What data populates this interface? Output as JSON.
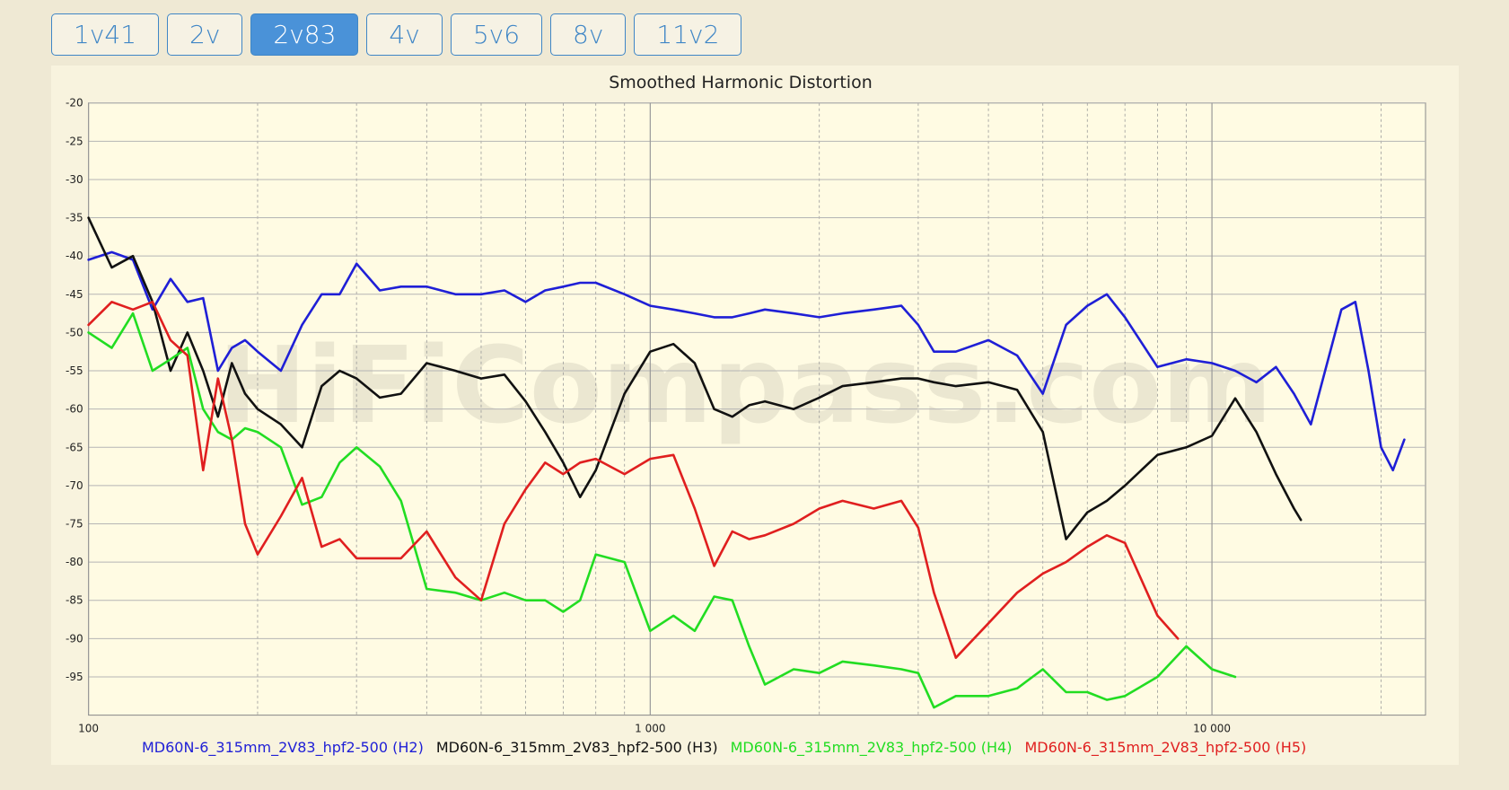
{
  "tabs": [
    {
      "label": "1v41",
      "active": false
    },
    {
      "label": "2v",
      "active": false
    },
    {
      "label": "2v83",
      "active": true
    },
    {
      "label": "4v",
      "active": false
    },
    {
      "label": "5v6",
      "active": false
    },
    {
      "label": "8v",
      "active": false
    },
    {
      "label": "11v2",
      "active": false
    }
  ],
  "chart_data": {
    "type": "line",
    "title": "Smoothed Harmonic Distortion",
    "watermark": "HiFiCompass.com",
    "xscale": "log",
    "grid": true,
    "minor_grid": true,
    "xlim": [
      100,
      24000
    ],
    "xticks": [
      100,
      {
        "value": 1000,
        "label": "1 000"
      },
      {
        "value": 10000,
        "label": "10 000"
      }
    ],
    "ylim": [
      -100,
      -20
    ],
    "yticks": [
      -20,
      -25,
      -30,
      -35,
      -40,
      -45,
      -50,
      -55,
      -60,
      -65,
      -70,
      -75,
      -80,
      -85,
      -90,
      -95
    ],
    "series": [
      {
        "name": "MD60N-6_315mm_2V83_hpf2-500 (H2)",
        "color": "#1f1fd6",
        "x": [
          100,
          110,
          120,
          130,
          140,
          150,
          160,
          170,
          180,
          190,
          200,
          220,
          240,
          260,
          280,
          300,
          330,
          360,
          400,
          450,
          500,
          550,
          600,
          650,
          700,
          750,
          800,
          900,
          1000,
          1100,
          1200,
          1300,
          1400,
          1500,
          1600,
          1800,
          2000,
          2200,
          2500,
          2800,
          3000,
          3200,
          3500,
          4000,
          4500,
          5000,
          5500,
          6000,
          6500,
          7000,
          8000,
          9000,
          10000,
          11000,
          12000,
          13000,
          14000,
          15000,
          17000,
          18000,
          19000,
          20000,
          21000,
          22000
        ],
        "values": [
          -40.5,
          -39.5,
          -40.5,
          -47,
          -43,
          -46,
          -45.5,
          -55,
          -52,
          -51,
          -52.5,
          -55,
          -49,
          -45,
          -45,
          -41,
          -44.5,
          -44,
          -44,
          -45,
          -45,
          -44.5,
          -46,
          -44.5,
          -44,
          -43.5,
          -43.5,
          -45,
          -46.5,
          -47,
          -47.5,
          -48,
          -48,
          -47.5,
          -47,
          -47.5,
          -48,
          -47.5,
          -47,
          -46.5,
          -49,
          -52.5,
          -52.5,
          -51,
          -53,
          -58,
          -49,
          -46.5,
          -45,
          -48,
          -54.5,
          -53.5,
          -54,
          -55,
          -56.5,
          -54.5,
          -58,
          -62,
          -47,
          -46,
          -55,
          -65,
          -68,
          -64
        ]
      },
      {
        "name": "MD60N-6_315mm_2V83_hpf2-500 (H3)",
        "color": "#111111",
        "x": [
          100,
          110,
          120,
          130,
          140,
          150,
          160,
          170,
          180,
          190,
          200,
          220,
          240,
          260,
          280,
          300,
          330,
          360,
          400,
          450,
          500,
          550,
          600,
          650,
          700,
          750,
          800,
          900,
          1000,
          1100,
          1200,
          1300,
          1400,
          1500,
          1600,
          1800,
          2000,
          2200,
          2500,
          2800,
          3000,
          3200,
          3500,
          4000,
          4500,
          5000,
          5500,
          6000,
          6500,
          7000,
          8000,
          9000,
          10000,
          11000,
          12000,
          13000,
          14000,
          14400
        ],
        "values": [
          -35,
          -41.5,
          -40,
          -46,
          -55,
          -50,
          -55,
          -61,
          -54,
          -58,
          -60,
          -62,
          -65,
          -57,
          -55,
          -56,
          -58.5,
          -58,
          -54,
          -55,
          -56,
          -55.5,
          -59,
          -63,
          -67,
          -71.5,
          -68,
          -58,
          -52.5,
          -51.5,
          -54,
          -60,
          -61,
          -59.5,
          -59,
          -60,
          -58.5,
          -57,
          -56.5,
          -56,
          -56,
          -56.5,
          -57,
          -56.5,
          -57.5,
          -63,
          -77,
          -73.5,
          -72,
          -70,
          -66,
          -65,
          -63.5,
          -58.6,
          -63,
          -68.5,
          -73,
          -74.5
        ]
      },
      {
        "name": "MD60N-6_315mm_2V83_hpf2-500 (H4)",
        "color": "#22dd22",
        "x": [
          100,
          110,
          120,
          130,
          140,
          150,
          160,
          170,
          180,
          190,
          200,
          220,
          240,
          260,
          280,
          300,
          330,
          360,
          400,
          450,
          500,
          550,
          600,
          650,
          700,
          750,
          800,
          900,
          1000,
          1100,
          1200,
          1300,
          1400,
          1500,
          1600,
          1800,
          2000,
          2200,
          2500,
          2800,
          3000,
          3200,
          3500,
          4000,
          4500,
          5000,
          5500,
          6000,
          6500,
          7000,
          8000,
          9000,
          10000,
          11000
        ],
        "values": [
          -50,
          -52,
          -47.5,
          -55,
          -53.5,
          -52,
          -60,
          -63,
          -64,
          -62.5,
          -63,
          -65,
          -72.5,
          -71.5,
          -67,
          -65,
          -67.5,
          -72,
          -83.5,
          -84,
          -85,
          -84,
          -85,
          -85,
          -86.5,
          -85,
          -79,
          -80,
          -89,
          -87,
          -89,
          -84.5,
          -85,
          -91,
          -96,
          -94,
          -94.5,
          -93,
          -93.5,
          -94,
          -94.5,
          -99,
          -97.5,
          -97.5,
          -96.5,
          -94,
          -97,
          -97,
          -98,
          -97.5,
          -95,
          -91,
          -94,
          -95
        ]
      },
      {
        "name": "MD60N-6_315mm_2V83_hpf2-500 (H5)",
        "color": "#e01f1f",
        "x": [
          100,
          110,
          120,
          130,
          140,
          150,
          160,
          170,
          180,
          190,
          200,
          220,
          240,
          260,
          280,
          300,
          330,
          360,
          400,
          450,
          500,
          550,
          600,
          650,
          700,
          750,
          800,
          900,
          1000,
          1100,
          1200,
          1300,
          1400,
          1500,
          1600,
          1800,
          2000,
          2200,
          2500,
          2800,
          3000,
          3200,
          3500,
          4000,
          4500,
          5000,
          5500,
          6000,
          6500,
          7000,
          8000,
          8700
        ],
        "values": [
          -49,
          -46,
          -47,
          -46,
          -51,
          -53,
          -68,
          -56,
          -64,
          -75,
          -79,
          -74,
          -69,
          -78,
          -77,
          -79.5,
          -79.5,
          -79.5,
          -76,
          -82,
          -85,
          -75,
          -70.5,
          -67,
          -68.5,
          -67,
          -66.5,
          -68.5,
          -66.5,
          -66,
          -73,
          -80.5,
          -76,
          -77,
          -76.5,
          -75,
          -73,
          -72,
          -73,
          -72,
          -75.5,
          -84,
          -92.5,
          -88,
          -84,
          -81.5,
          -80,
          -78,
          -76.5,
          -77.5,
          -87,
          -90
        ]
      }
    ]
  }
}
